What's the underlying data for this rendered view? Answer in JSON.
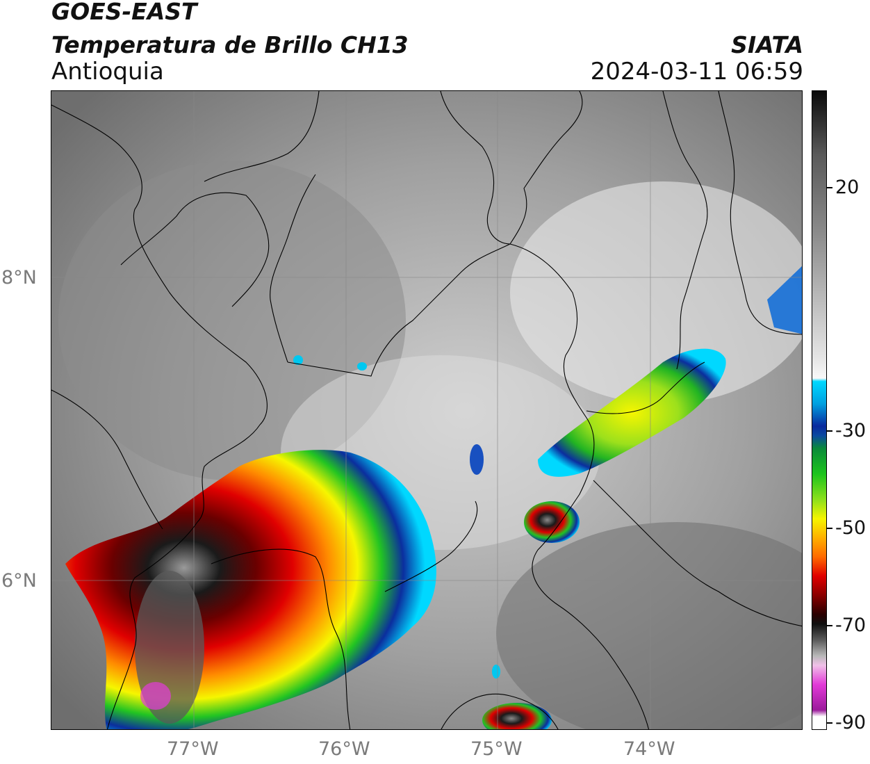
{
  "header": {
    "satellite": "GOES-EAST",
    "product": "Temperatura de Brillo CH13",
    "region": "Antioquia",
    "source": "SIATA",
    "datetime": "2024-03-11 06:59"
  },
  "map": {
    "lat_labels": [
      "8°N",
      "6°N"
    ],
    "lon_labels": [
      "77°W",
      "76°W",
      "75°W",
      "74°W"
    ],
    "extent": {
      "lon": [
        -77.95,
        -72.98
      ],
      "lat": [
        4.93,
        9.16
      ]
    },
    "gridlines": true
  },
  "colorbar": {
    "labels": [
      "20",
      "-30",
      "-50",
      "-70",
      "-90"
    ],
    "colors": {
      "warm_gray": "#7a7a7a",
      "light_gray": "#e6e6e6",
      "cyan": "#00d8ff",
      "blue": "#0a2a9e",
      "green": "#1cc41c",
      "yellow": "#f5f500",
      "orange": "#ff8a00",
      "red": "#d60000",
      "dark_red": "#5a0000",
      "black": "#101010",
      "magenta": "#e23ad8",
      "purple": "#9b1a9b"
    }
  }
}
